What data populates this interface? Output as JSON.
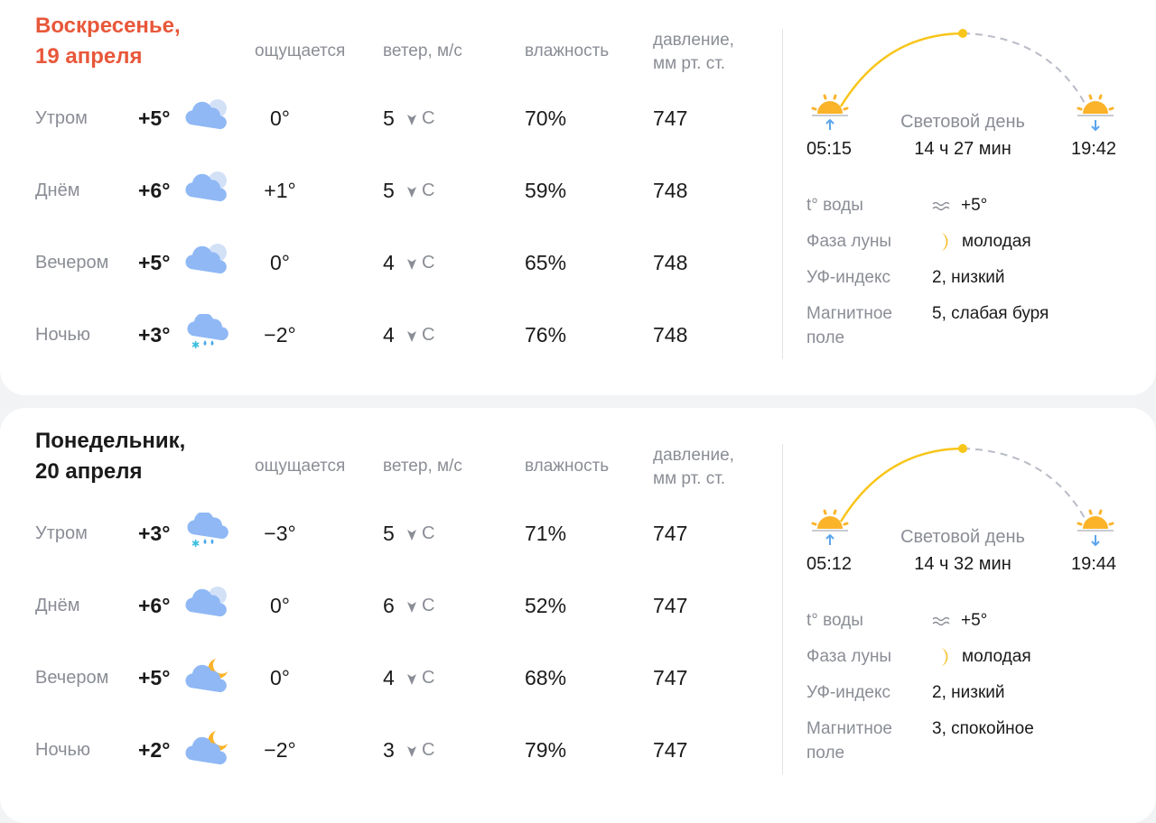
{
  "headers": {
    "feels": "ощущается",
    "wind": "ветер, м/с",
    "humidity": "влажность",
    "pressure_line1": "давление,",
    "pressure_line2": "мм рт. ст."
  },
  "colors": {
    "title_today": "#e8573a",
    "cloud": "#8fb8f5",
    "sun": "#fbb32a",
    "arc": "#f8c51a"
  },
  "days": [
    {
      "title_line1": "Воскресенье,",
      "title_line2": "19 апреля",
      "is_today": true,
      "rows": [
        {
          "part": "Утром",
          "temp": "+5°",
          "icon": "cloudy-icon",
          "feels": "0°",
          "wind": "5",
          "dir": "С",
          "humidity": "70%",
          "pressure": "747"
        },
        {
          "part": "Днём",
          "temp": "+6°",
          "icon": "cloudy-icon",
          "feels": "+1°",
          "wind": "5",
          "dir": "С",
          "humidity": "59%",
          "pressure": "748"
        },
        {
          "part": "Вечером",
          "temp": "+5°",
          "icon": "cloudy-icon",
          "feels": "0°",
          "wind": "4",
          "dir": "С",
          "humidity": "65%",
          "pressure": "748"
        },
        {
          "part": "Ночью",
          "temp": "+3°",
          "icon": "sleet-icon",
          "feels": "−2°",
          "wind": "4",
          "dir": "С",
          "humidity": "76%",
          "pressure": "748"
        }
      ],
      "sun": {
        "sunrise": "05:15",
        "sunset": "19:42",
        "daylight_label": "Световой день",
        "daylight": "14 ч 27 мин"
      },
      "info": [
        {
          "label": "t° воды",
          "icon": "water-waves-icon",
          "value": "+5°"
        },
        {
          "label": "Фаза луны",
          "icon": "moon-crescent-icon",
          "value": "молодая"
        },
        {
          "label": "УФ-индекс",
          "value": "2, низкий"
        },
        {
          "label": "Магнитное поле",
          "value": "5, слабая буря"
        }
      ]
    },
    {
      "title_line1": "Понедельник,",
      "title_line2": "20 апреля",
      "is_today": false,
      "rows": [
        {
          "part": "Утром",
          "temp": "+3°",
          "icon": "sleet-icon",
          "feels": "−3°",
          "wind": "5",
          "dir": "С",
          "humidity": "71%",
          "pressure": "747"
        },
        {
          "part": "Днём",
          "temp": "+6°",
          "icon": "cloudy-icon",
          "feels": "0°",
          "wind": "6",
          "dir": "С",
          "humidity": "52%",
          "pressure": "747"
        },
        {
          "part": "Вечером",
          "temp": "+5°",
          "icon": "cloudy-night-icon",
          "feels": "0°",
          "wind": "4",
          "dir": "С",
          "humidity": "68%",
          "pressure": "747"
        },
        {
          "part": "Ночью",
          "temp": "+2°",
          "icon": "cloudy-night-icon",
          "feels": "−2°",
          "wind": "3",
          "dir": "С",
          "humidity": "79%",
          "pressure": "747"
        }
      ],
      "sun": {
        "sunrise": "05:12",
        "sunset": "19:44",
        "daylight_label": "Световой день",
        "daylight": "14 ч 32 мин"
      },
      "info": [
        {
          "label": "t° воды",
          "icon": "water-waves-icon",
          "value": "+5°"
        },
        {
          "label": "Фаза луны",
          "icon": "moon-crescent-icon",
          "value": "молодая"
        },
        {
          "label": "УФ-индекс",
          "value": "2, низкий"
        },
        {
          "label": "Магнитное поле",
          "value": "3, спокойное"
        }
      ]
    }
  ]
}
